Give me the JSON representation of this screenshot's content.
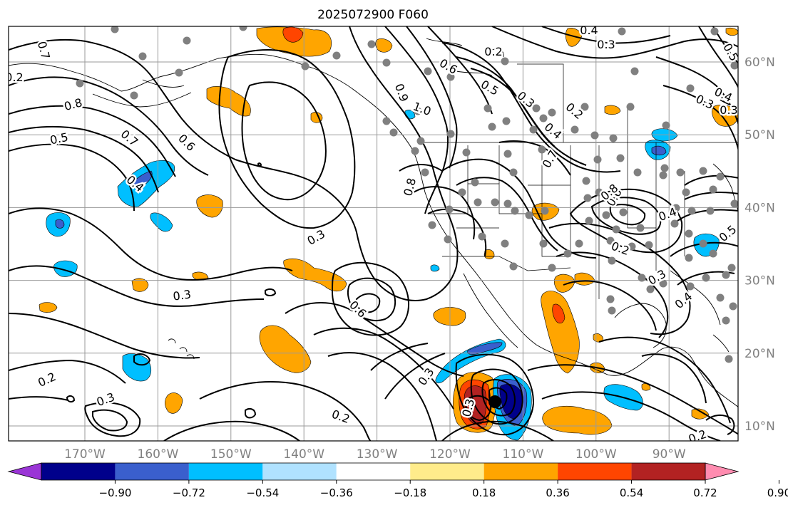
{
  "title": "2025072900 F060",
  "lon_labels": [
    "170°W",
    "160°W",
    "150°W",
    "140°W",
    "130°W",
    "120°W",
    "110°W",
    "100°W",
    "90°W"
  ],
  "lat_labels": [
    "60°N",
    "50°N",
    "40°N",
    "30°N",
    "20°N",
    "10°N"
  ],
  "colorbar": {
    "colors": [
      "#9a35d6",
      "#00008b",
      "#3a5fcd",
      "#00bfff",
      "#b0e2ff",
      "#ffffff",
      "#ffec8b",
      "#ffa500",
      "#ff4500",
      "#b22222",
      "#ff8cb0"
    ],
    "labels": [
      "−0.90",
      "−0.72",
      "−0.54",
      "−0.36",
      "−0.18",
      "0.18",
      "0.36",
      "0.54",
      "0.72",
      "0.90"
    ]
  },
  "contour_labels": [
    "0.7",
    "0.8",
    "0.5",
    "0.7",
    "0.6",
    "0.4",
    "0.3",
    "0.3",
    "0.6",
    "0.2",
    "0.3",
    "0.2",
    "0.3",
    "0.2",
    "0.3",
    "0.9",
    "1.0",
    "0.6",
    "0.5",
    "0.3",
    "0.4",
    "0.2",
    "0.8",
    "0.7",
    "0.3",
    "0.4",
    "0.3",
    "0.5",
    "0.4",
    "0.4",
    "0.6",
    "0.2",
    "0.3",
    "0.5",
    "0.4",
    "0.2",
    "0.3",
    "0.8",
    "0.2"
  ],
  "colors": {
    "grid": "#9a9a9a",
    "contour": "#000000",
    "station": "#808080",
    "storm": "#000000"
  }
}
